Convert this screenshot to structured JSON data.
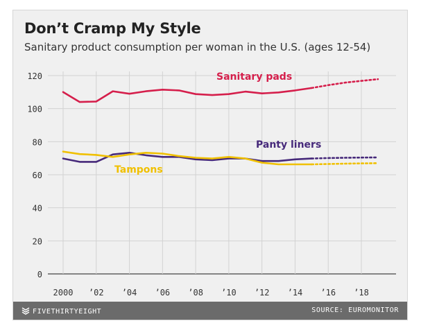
{
  "title": "Don’t Cramp My Style",
  "subtitle": "Sanitary product consumption per woman in the U.S. (ages 12-54)",
  "footer": {
    "brand": "FIVETHIRTYEIGHT",
    "source": "SOURCE: EUROMONITOR"
  },
  "icons": {
    "brand_logo": "fivethirtyeight-logo-icon"
  },
  "chart_data": {
    "type": "line",
    "title": "Don’t Cramp My Style",
    "subtitle": "Sanitary product consumption per woman in the U.S. (ages 12-54)",
    "xlabel": "",
    "ylabel": "",
    "xlim": [
      1999,
      2020
    ],
    "ylim": [
      0,
      125
    ],
    "grid": true,
    "x_ticks": [
      2000,
      2002,
      2004,
      2006,
      2008,
      2010,
      2012,
      2014,
      2016,
      2018
    ],
    "x_tick_labels": [
      "2000",
      "’02",
      "’04",
      "’06",
      "’08",
      "’10",
      "’12",
      "’14",
      "’16",
      "’18"
    ],
    "y_ticks": [
      0,
      20,
      40,
      60,
      80,
      100,
      120
    ],
    "y_tick_labels": [
      "0",
      "20",
      "40",
      "60",
      "80",
      "100",
      "120"
    ],
    "legend": "inline labels",
    "forecast_from": 2015,
    "series": [
      {
        "name": "Sanitary pads",
        "color": "#d51e4b",
        "x": [
          2000,
          2001,
          2002,
          2003,
          2004,
          2005,
          2006,
          2007,
          2008,
          2009,
          2010,
          2011,
          2012,
          2013,
          2014,
          2015,
          2016,
          2017,
          2018,
          2019
        ],
        "values": [
          110,
          104,
          104.3,
          110.5,
          109,
          110.5,
          111.5,
          111,
          108.8,
          108.2,
          108.8,
          110.3,
          109.2,
          109.8,
          111,
          112.5,
          114.2,
          115.7,
          116.8,
          117.8
        ]
      },
      {
        "name": "Panty liners",
        "color": "#46297a",
        "x": [
          2000,
          2001,
          2002,
          2003,
          2004,
          2005,
          2006,
          2007,
          2008,
          2009,
          2010,
          2011,
          2012,
          2013,
          2014,
          2015,
          2016,
          2017,
          2018,
          2019
        ],
        "values": [
          69.8,
          67.8,
          67.8,
          72.3,
          73.3,
          71.8,
          70.8,
          70.8,
          69.3,
          68.8,
          69.8,
          69.8,
          68.3,
          68.3,
          69.3,
          69.8,
          70.1,
          70.3,
          70.4,
          70.5
        ]
      },
      {
        "name": "Tampons",
        "color": "#f0c000",
        "x": [
          2000,
          2001,
          2002,
          2003,
          2004,
          2005,
          2006,
          2007,
          2008,
          2009,
          2010,
          2011,
          2012,
          2013,
          2014,
          2015,
          2016,
          2017,
          2018,
          2019
        ],
        "values": [
          74,
          72.5,
          72,
          70.8,
          72.3,
          73.3,
          72.8,
          71.3,
          70.3,
          69.8,
          70.8,
          69.8,
          67.3,
          66.3,
          66.3,
          66.3,
          66.5,
          66.7,
          66.9,
          67
        ]
      }
    ]
  }
}
